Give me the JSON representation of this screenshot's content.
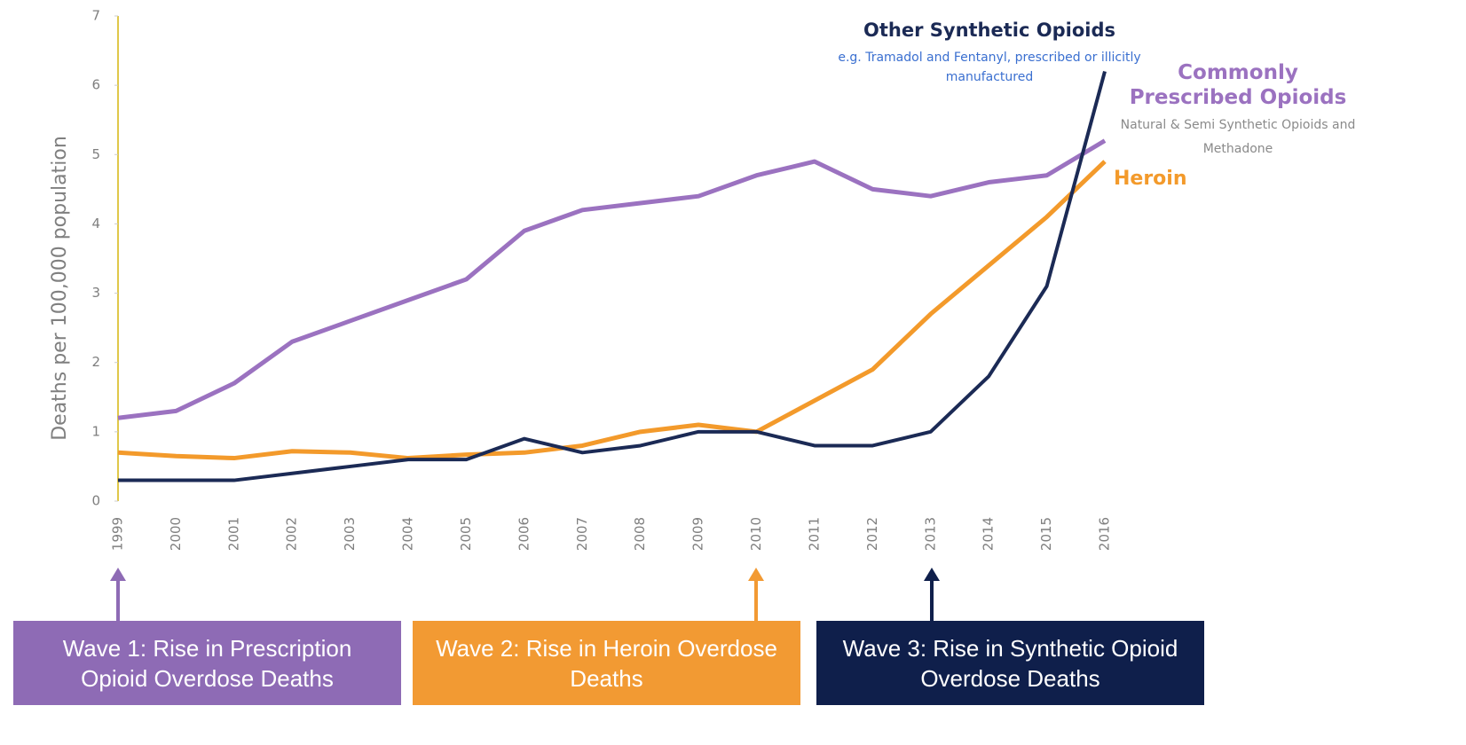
{
  "chart_data": {
    "type": "line",
    "y_label": "Deaths per 100,000 population",
    "categories": [
      "1999",
      "2000",
      "2001",
      "2002",
      "2003",
      "2004",
      "2005",
      "2006",
      "2007",
      "2008",
      "2009",
      "2010",
      "2011",
      "2012",
      "2013",
      "2014",
      "2015",
      "2016"
    ],
    "series": [
      {
        "name": "Commonly Prescribed Opioids",
        "color": "#9b72c0",
        "values": [
          1.2,
          1.3,
          1.7,
          2.3,
          2.6,
          2.9,
          3.2,
          3.9,
          4.2,
          4.3,
          4.4,
          4.7,
          4.9,
          4.5,
          4.4,
          4.6,
          4.7,
          5.2
        ]
      },
      {
        "name": "Heroin",
        "color": "#f39a2b",
        "values": [
          0.7,
          0.65,
          0.62,
          0.72,
          0.7,
          0.62,
          0.67,
          0.7,
          0.8,
          1.0,
          1.1,
          1.0,
          1.45,
          1.9,
          2.7,
          3.4,
          4.1,
          4.9
        ]
      },
      {
        "name": "Other Synthetic Opioids",
        "color": "#1b2a55",
        "values": [
          0.3,
          0.3,
          0.3,
          0.4,
          0.5,
          0.6,
          0.6,
          0.9,
          0.7,
          0.8,
          1.0,
          1.0,
          0.8,
          0.8,
          1.0,
          1.8,
          3.1,
          6.2
        ]
      }
    ],
    "annotations": [
      "Natural & Semi Synthetic Opioids and Methadone",
      "e.g. Tramadol and Fentanyl, prescribed or illicitly manufactured"
    ],
    "ylim": [
      0,
      7
    ],
    "yticks": [
      0,
      1,
      2,
      3,
      4,
      5,
      6,
      7
    ],
    "grid": false,
    "waves": [
      "Wave 1: Rise in Prescription Opioid Overdose Deaths",
      "Wave 2: Rise in Heroin Overdose Deaths",
      "Wave 3: Rise in Synthetic Opioid Overdose Deaths"
    ],
    "wave_colors": [
      "#8e6bb5",
      "#f29a33",
      "#0f1f4b"
    ]
  }
}
